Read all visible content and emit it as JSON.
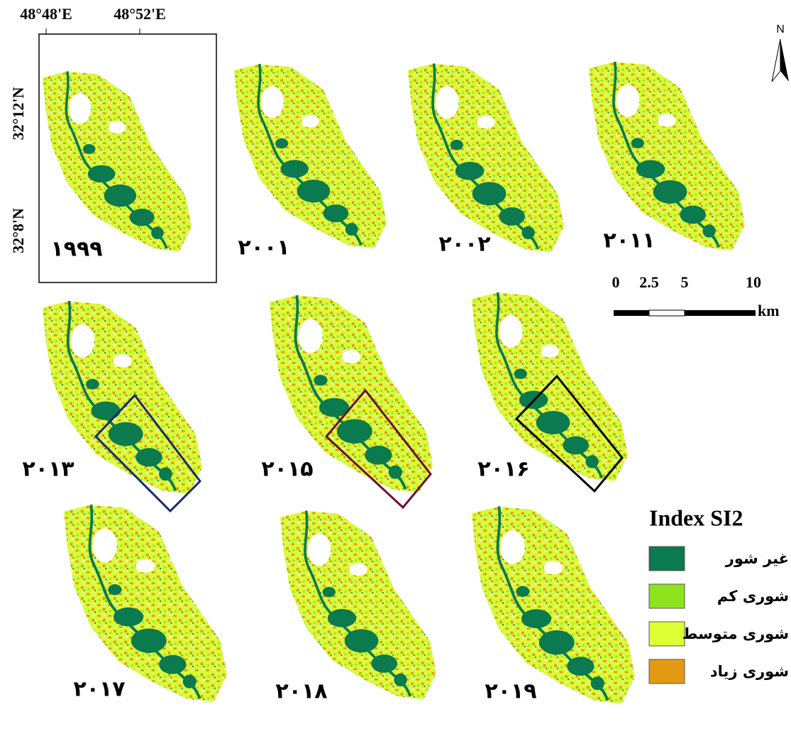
{
  "graticule": {
    "longitudes": [
      "48°48'E",
      "48°52'E"
    ],
    "latitudes": [
      "32°12'N",
      "32°8'N"
    ]
  },
  "north": "N",
  "panels": [
    "۱۹۹۹",
    "۲۰۰۱",
    "۲۰۰۲",
    "۲۰۱۱",
    "۲۰۱۳",
    "۲۰۱۵",
    "۲۰۱۶",
    "۲۰۱۷",
    "۲۰۱۸",
    "۲۰۱۹"
  ],
  "scale_bar": {
    "labels": [
      "0",
      "2.5",
      "5",
      "10"
    ],
    "unit": "km"
  },
  "legend": {
    "title": "Index SI2",
    "items": [
      {
        "label": "غیر شور",
        "color": "#0b7a4e"
      },
      {
        "label": "شوری کم",
        "color": "#8fe31c"
      },
      {
        "label": "شوری متوسط",
        "color": "#ddff33"
      },
      {
        "label": "شوری زیاد",
        "color": "#e39a12"
      }
    ]
  }
}
